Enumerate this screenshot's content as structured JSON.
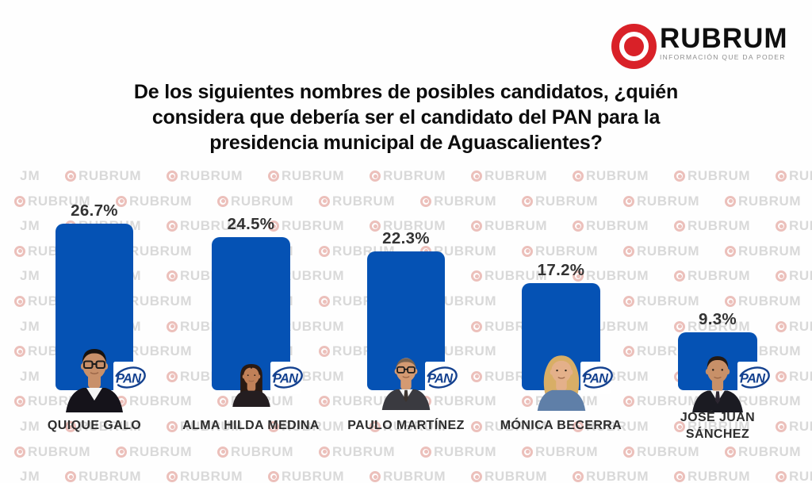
{
  "logo": {
    "brand": "RUBRUM",
    "tagline": "INFORMACIÓN QUE DA PODER",
    "icon": "bullseye-icon",
    "brand_color": "#d92128"
  },
  "title": {
    "lines": [
      "De los siguientes nombres de posibles candidatos, ¿quién",
      "considera que debería ser el candidato del PAN para la",
      "presidencia municipal de Aguascalientes?"
    ]
  },
  "watermark": {
    "brand": "RUBRUM",
    "initials": "JM"
  },
  "chart_data": {
    "type": "bar",
    "orientation": "vertical",
    "title": "De los siguientes nombres de posibles candidatos, ¿quién considera que debería ser el candidato del PAN para la presidencia municipal de Aguascalientes?",
    "categories": [
      "QUIQUE GALO",
      "ALMA HILDA MEDINA",
      "PAULO MARTÍNEZ",
      "MÓNICA BECERRA",
      "JOSÉ JUAN SÁNCHEZ"
    ],
    "display_names": [
      "QUIQUE GALO",
      "ALMA HILDA MEDINA",
      "PAULO MARTÍNEZ",
      "MÓNICA BECERRA",
      "JOSÉ JUAN\nSÁNCHEZ"
    ],
    "values": [
      26.7,
      24.5,
      22.3,
      17.2,
      9.3
    ],
    "value_labels": [
      "26.7%",
      "24.5%",
      "22.3%",
      "17.2%",
      "9.3%"
    ],
    "unit": "%",
    "ylim": [
      0,
      30
    ],
    "grid": false,
    "legend": false,
    "bar_color": "#0552b4",
    "badge_label": "PAN",
    "badge_color": "#14418f"
  }
}
